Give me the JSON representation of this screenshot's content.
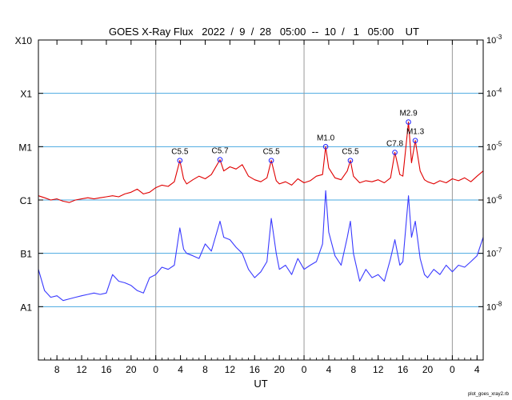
{
  "chart_data": {
    "type": "line",
    "title": "GOES X-Ray Flux   2022  /  9  /  28   05:00  --  10  /   1   05:00    UT",
    "xlabel": "UT",
    "ylabel": "",
    "y_scale": "log",
    "ylim": [
      1e-09,
      0.001
    ],
    "xlim_hours": [
      0,
      72
    ],
    "x_tick_labels": [
      "8",
      "12",
      "16",
      "20",
      "0",
      "4",
      "8",
      "12",
      "16",
      "20",
      "0",
      "4",
      "8",
      "12",
      "16",
      "20",
      "0",
      "4"
    ],
    "y_left_labels": [
      "A1",
      "B1",
      "C1",
      "M1",
      "X1",
      "X10"
    ],
    "y_right_labels": [
      "10^-8",
      "10^-7",
      "10^-6",
      "10^-5",
      "10^-4",
      "10^-3"
    ],
    "grid": "horizontal at each decade; vertical at day boundaries",
    "colors": {
      "long_primary": "#e00000",
      "long_secondary": "#ff8c1a",
      "short_primary": "#3a3aff",
      "short_secondary": "#7a00c8",
      "grid_h": "#4aa8e0",
      "grid_v": "#999999",
      "marker": "#2020ff"
    },
    "flare_labels": [
      {
        "label": "C5.5",
        "hour": 22.9,
        "flux": 5.5e-06
      },
      {
        "label": "C5.7",
        "hour": 29.4,
        "flux": 5.7e-06
      },
      {
        "label": "C5.5",
        "hour": 37.7,
        "flux": 5.5e-06
      },
      {
        "label": "M1.0",
        "hour": 46.5,
        "flux": 1e-05
      },
      {
        "label": "C5.5",
        "hour": 50.5,
        "flux": 5.5e-06
      },
      {
        "label": "C7.8",
        "hour": 57.7,
        "flux": 7.8e-06
      },
      {
        "label": "M2.9",
        "hour": 59.9,
        "flux": 2.9e-05
      },
      {
        "label": "M1.3",
        "hour": 61.0,
        "flux": 1.3e-05
      }
    ],
    "series": [
      {
        "key": "long",
        "x": [
          0,
          1,
          2,
          3,
          4,
          5,
          6,
          7,
          8,
          9,
          10,
          11,
          12,
          13,
          14,
          15,
          16,
          17,
          18,
          19,
          20,
          21,
          22,
          22.9,
          23.5,
          24,
          25,
          26,
          27,
          28,
          29.4,
          30,
          31,
          32,
          33,
          34,
          35,
          36,
          37,
          37.7,
          38.5,
          39,
          40,
          41,
          42,
          43,
          44,
          45,
          46,
          46.5,
          47,
          48,
          49,
          50,
          50.5,
          51,
          52,
          53,
          54,
          55,
          56,
          57,
          57.7,
          58.5,
          59,
          59.9,
          60.4,
          61,
          61.8,
          62.5,
          63,
          64,
          65,
          66,
          67,
          68,
          69,
          70,
          71,
          72
        ],
        "y": [
          1.2e-06,
          1.1e-06,
          1e-06,
          1.05e-06,
          9.5e-07,
          9e-07,
          1e-06,
          1.05e-06,
          1.1e-06,
          1.05e-06,
          1.1e-06,
          1.15e-06,
          1.2e-06,
          1.15e-06,
          1.3e-06,
          1.4e-06,
          1.6e-06,
          1.3e-06,
          1.4e-06,
          1.7e-06,
          1.9e-06,
          1.8e-06,
          2.2e-06,
          5.5e-06,
          2.5e-06,
          2e-06,
          2.4e-06,
          2.8e-06,
          2.5e-06,
          3e-06,
          5.7e-06,
          3.5e-06,
          4.2e-06,
          3.8e-06,
          4.6e-06,
          2.8e-06,
          2.4e-06,
          2.2e-06,
          2.6e-06,
          5.5e-06,
          2.3e-06,
          2e-06,
          2.2e-06,
          1.9e-06,
          2.5e-06,
          2.1e-06,
          2.3e-06,
          2.8e-06,
          3e-06,
          1e-05,
          4e-06,
          2.6e-06,
          2.4e-06,
          3.5e-06,
          5.5e-06,
          2.8e-06,
          2.1e-06,
          2.3e-06,
          2.2e-06,
          2.4e-06,
          2.1e-06,
          2.6e-06,
          7.8e-06,
          3e-06,
          2.8e-06,
          2.9e-05,
          5e-06,
          1.3e-05,
          3.5e-06,
          2.4e-06,
          2.2e-06,
          2e-06,
          2.3e-06,
          2.1e-06,
          2.5e-06,
          2.3e-06,
          2.6e-06,
          2.2e-06,
          2.8e-06,
          3.5e-06
        ]
      },
      {
        "key": "short",
        "x": [
          0,
          1,
          2,
          3,
          4,
          5,
          6,
          7,
          8,
          9,
          10,
          11,
          12,
          13,
          14,
          15,
          16,
          17,
          18,
          19,
          20,
          21,
          22,
          22.9,
          23.5,
          24,
          25,
          26,
          27,
          28,
          29.4,
          30,
          31,
          32,
          33,
          34,
          35,
          36,
          37,
          37.7,
          38.5,
          39,
          40,
          41,
          42,
          43,
          44,
          45,
          46,
          46.5,
          47,
          48,
          49,
          50,
          50.5,
          51,
          52,
          53,
          54,
          55,
          56,
          57,
          57.7,
          58.5,
          59,
          59.9,
          60.4,
          61,
          61.8,
          62.5,
          63,
          64,
          65,
          66,
          67,
          68,
          69,
          70,
          71,
          72
        ],
        "y": [
          5e-08,
          2e-08,
          1.5e-08,
          1.6e-08,
          1.3e-08,
          1.4e-08,
          1.5e-08,
          1.6e-08,
          1.7e-08,
          1.8e-08,
          1.7e-08,
          1.8e-08,
          4e-08,
          3e-08,
          2.8e-08,
          2.5e-08,
          2e-08,
          1.8e-08,
          3.5e-08,
          4e-08,
          5.5e-08,
          5e-08,
          6e-08,
          3e-07,
          1.2e-07,
          1e-07,
          9e-08,
          8e-08,
          1.5e-07,
          1.1e-07,
          4e-07,
          2e-07,
          1.8e-07,
          1.3e-07,
          1e-07,
          5e-08,
          3.5e-08,
          4.5e-08,
          7e-08,
          4.5e-07,
          1e-07,
          5e-08,
          6e-08,
          4e-08,
          8e-08,
          5e-08,
          6e-08,
          7e-08,
          1.5e-07,
          1.5e-06,
          2.5e-07,
          9e-08,
          6e-08,
          2e-07,
          4e-07,
          1e-07,
          3e-08,
          5e-08,
          3.5e-08,
          4e-08,
          3e-08,
          8e-08,
          1.8e-07,
          6e-08,
          7e-08,
          1.2e-06,
          2e-07,
          4e-07,
          8e-08,
          4e-08,
          3.5e-08,
          5e-08,
          4e-08,
          6e-08,
          4.5e-08,
          6e-08,
          5.5e-08,
          7e-08,
          9e-08,
          2e-07
        ]
      }
    ]
  },
  "footer_note": "plot_goes_xray2.rb"
}
